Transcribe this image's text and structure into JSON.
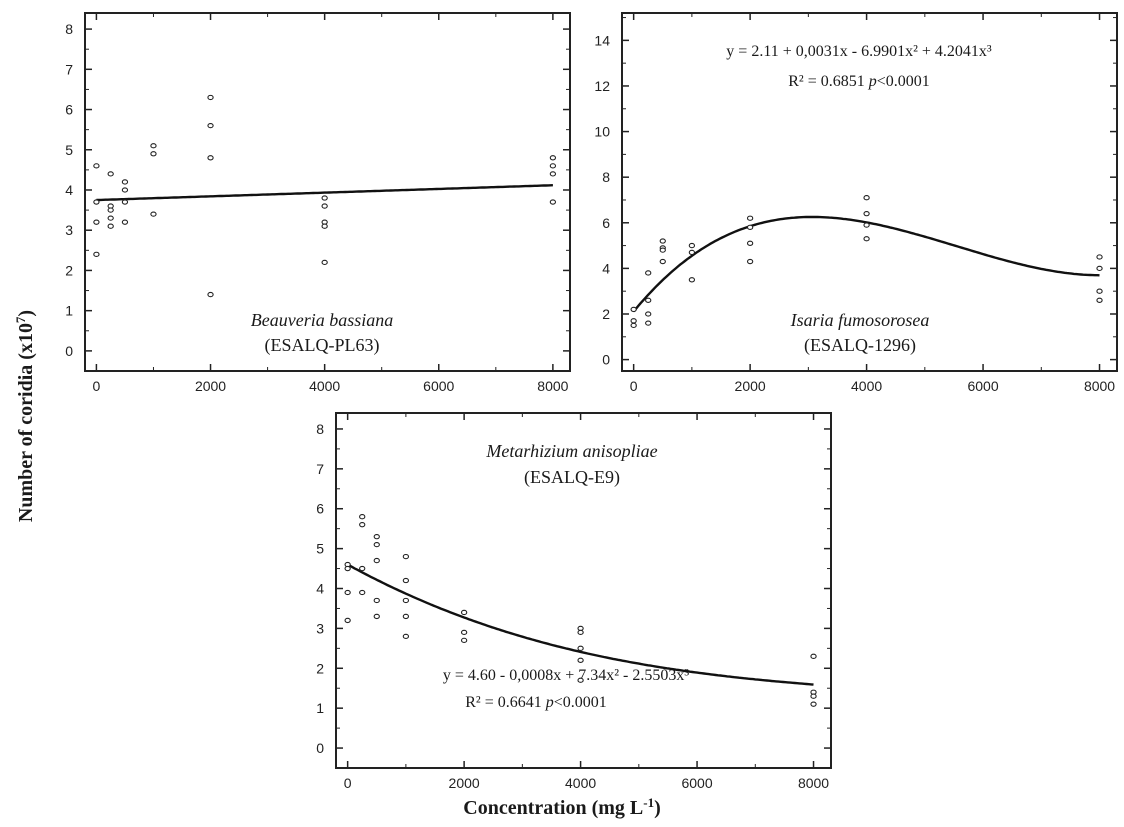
{
  "figure": {
    "ylabel": "Number of coridia  (x10",
    "ylabel_exp": "7",
    "ylabel_end": ")",
    "xlabel": "Concentration  (mg L",
    "xlabel_exp": "-1",
    "xlabel_end": ")"
  },
  "chart_data": [
    {
      "type": "scatter",
      "title": "Beauveria bassiana",
      "subtitle": "(ESALQ-PL63)",
      "xlim": [
        -200,
        8300
      ],
      "ylim": [
        -0.5,
        8.4
      ],
      "xticks": [
        0,
        2000,
        4000,
        6000,
        8000
      ],
      "yticks": [
        0,
        1,
        2,
        3,
        4,
        5,
        6,
        7,
        8
      ],
      "points": [
        [
          0,
          4.6
        ],
        [
          0,
          3.7
        ],
        [
          0,
          3.2
        ],
        [
          0,
          2.4
        ],
        [
          250,
          4.4
        ],
        [
          250,
          3.6
        ],
        [
          250,
          3.5
        ],
        [
          250,
          3.3
        ],
        [
          250,
          3.1
        ],
        [
          500,
          4.2
        ],
        [
          500,
          4.0
        ],
        [
          500,
          3.7
        ],
        [
          500,
          3.2
        ],
        [
          1000,
          5.1
        ],
        [
          1000,
          4.9
        ],
        [
          1000,
          3.4
        ],
        [
          2000,
          6.3
        ],
        [
          2000,
          5.6
        ],
        [
          2000,
          4.8
        ],
        [
          2000,
          1.4
        ],
        [
          4000,
          3.8
        ],
        [
          4000,
          3.6
        ],
        [
          4000,
          3.2
        ],
        [
          4000,
          3.1
        ],
        [
          4000,
          2.2
        ],
        [
          8000,
          4.8
        ],
        [
          8000,
          4.6
        ],
        [
          8000,
          4.4
        ],
        [
          8000,
          3.7
        ]
      ],
      "fit": {
        "type": "linear",
        "coef": [
          3.75,
          4.6e-05
        ]
      },
      "equation": "",
      "r2": ""
    },
    {
      "type": "scatter",
      "title": "Isaria fumosorosea",
      "subtitle": "(ESALQ-1296)",
      "xlim": [
        -200,
        8300
      ],
      "ylim": [
        -0.5,
        15.2
      ],
      "xticks": [
        0,
        2000,
        4000,
        6000,
        8000
      ],
      "yticks": [
        0,
        2,
        4,
        6,
        8,
        10,
        12,
        14
      ],
      "points": [
        [
          0,
          2.2
        ],
        [
          0,
          1.7
        ],
        [
          0,
          1.5
        ],
        [
          250,
          3.8
        ],
        [
          250,
          2.6
        ],
        [
          250,
          2.0
        ],
        [
          250,
          1.6
        ],
        [
          500,
          5.2
        ],
        [
          500,
          4.9
        ],
        [
          500,
          4.8
        ],
        [
          500,
          4.3
        ],
        [
          1000,
          5.0
        ],
        [
          1000,
          4.7
        ],
        [
          1000,
          3.5
        ],
        [
          2000,
          6.2
        ],
        [
          2000,
          5.8
        ],
        [
          2000,
          5.1
        ],
        [
          2000,
          4.3
        ],
        [
          4000,
          7.1
        ],
        [
          4000,
          6.4
        ],
        [
          4000,
          5.9
        ],
        [
          4000,
          5.3
        ],
        [
          8000,
          4.5
        ],
        [
          8000,
          4.0
        ],
        [
          8000,
          3.0
        ],
        [
          8000,
          2.6
        ]
      ],
      "fit": {
        "type": "polynomial",
        "coef": [
          2.11,
          0.0031,
          -6.9901e-07,
          4.2041e-11
        ]
      },
      "equation": "y = 2.11 + 0,0031x - 6.9901x² + 4.2041x³",
      "r2_label": "R² = 0.6851",
      "p_symbol": "p",
      "p_text": "<0.0001"
    },
    {
      "type": "scatter",
      "title": "Metarhizium anisopliae",
      "subtitle": "(ESALQ-E9)",
      "xlim": [
        -200,
        8300
      ],
      "ylim": [
        -0.5,
        8.4
      ],
      "xticks": [
        0,
        2000,
        4000,
        6000,
        8000
      ],
      "yticks": [
        0,
        1,
        2,
        3,
        4,
        5,
        6,
        7,
        8
      ],
      "points": [
        [
          0,
          4.6
        ],
        [
          0,
          4.5
        ],
        [
          0,
          3.9
        ],
        [
          0,
          3.2
        ],
        [
          250,
          5.8
        ],
        [
          250,
          5.6
        ],
        [
          250,
          4.5
        ],
        [
          250,
          3.9
        ],
        [
          500,
          5.3
        ],
        [
          500,
          5.1
        ],
        [
          500,
          4.7
        ],
        [
          500,
          3.7
        ],
        [
          500,
          3.3
        ],
        [
          1000,
          4.8
        ],
        [
          1000,
          4.2
        ],
        [
          1000,
          3.7
        ],
        [
          1000,
          3.3
        ],
        [
          1000,
          2.8
        ],
        [
          2000,
          3.4
        ],
        [
          2000,
          2.9
        ],
        [
          2000,
          2.7
        ],
        [
          4000,
          3.0
        ],
        [
          4000,
          2.9
        ],
        [
          4000,
          2.5
        ],
        [
          4000,
          2.2
        ],
        [
          4000,
          1.7
        ],
        [
          8000,
          2.3
        ],
        [
          8000,
          1.4
        ],
        [
          8000,
          1.3
        ],
        [
          8000,
          1.1
        ]
      ],
      "fit": {
        "type": "polynomial",
        "coef": [
          4.6,
          -0.0008,
          7.34e-08,
          -2.5503e-12
        ]
      },
      "equation": "y = 4.60 - 0,0008x + 7.34x² - 2.5503x³",
      "r2_label": "R² = 0.6641",
      "p_symbol": "p",
      "p_text": "<0.0001"
    }
  ]
}
